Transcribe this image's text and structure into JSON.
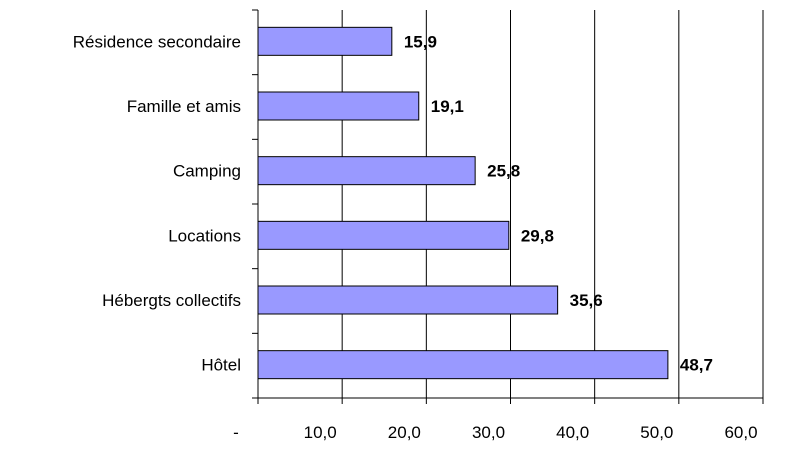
{
  "chart_data": {
    "type": "bar",
    "orientation": "horizontal",
    "categories": [
      "Résidence secondaire",
      "Famille et amis",
      "Camping",
      "Locations",
      "Hébergts collectifs",
      "Hôtel"
    ],
    "values": [
      15.9,
      19.1,
      25.8,
      29.8,
      35.6,
      48.7
    ],
    "data_labels": [
      "15,9",
      "19,1",
      "25,8",
      "29,8",
      "35,6",
      "48,7"
    ],
    "xlim": [
      0,
      60
    ],
    "x_ticks": [
      0,
      10,
      20,
      30,
      40,
      50,
      60
    ],
    "x_tick_labels": [
      "-",
      "10,0",
      "20,0",
      "30,0",
      "40,0",
      "50,0",
      "60,0"
    ],
    "grid": "vertical",
    "legend": "none",
    "bar_color": "#9999ff",
    "bar_border_color": "#000000",
    "title": "",
    "xlabel": "",
    "ylabel": ""
  }
}
